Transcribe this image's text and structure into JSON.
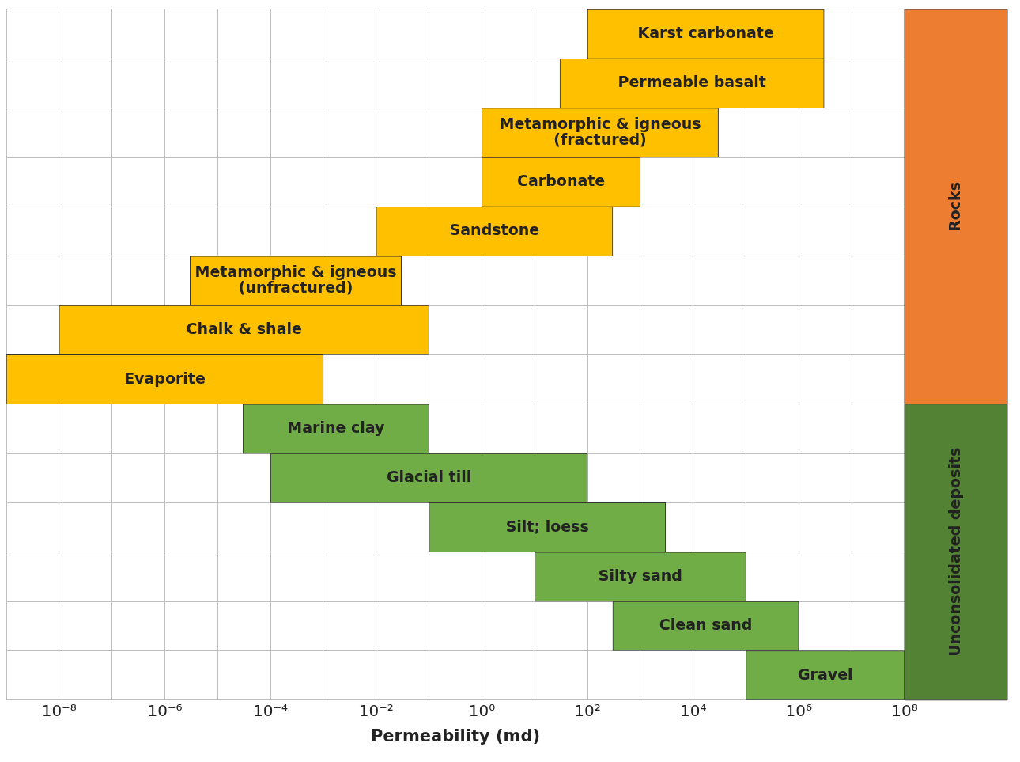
{
  "chart_data": {
    "type": "bar",
    "orientation": "horizontal",
    "xlabel": "Permeability (md)",
    "categories": [
      "Karst carbonate",
      "Permeable basalt",
      "Metamorphic & igneous (fractured)",
      "Carbonate",
      "Sandstone",
      "Metamorphic & igneous (unfractured)",
      "Chalk & shale",
      "Evaporite",
      "Marine clay",
      "Glacial till",
      "Silt; loess",
      "Silty sand",
      "Clean sand",
      "Gravel"
    ],
    "base": [
      100,
      30,
      1,
      1,
      0.01,
      3e-06,
      1e-08,
      1e-09,
      3e-05,
      0.0001,
      0.1,
      10,
      300,
      100000
    ],
    "values": [
      2999900,
      2999970,
      29999,
      999,
      299.99,
      0.029997,
      0.09999999,
      0.000999999,
      0.09997,
      99.9999,
      2999.9,
      99990,
      999700,
      99900000
    ],
    "colors": [
      "#ffc000",
      "#ffc000",
      "#ffc000",
      "#ffc000",
      "#ffc000",
      "#ffc000",
      "#ffc000",
      "#ffc000",
      "#70ad47",
      "#70ad47",
      "#70ad47",
      "#70ad47",
      "#70ad47",
      "#70ad47"
    ],
    "log": "x",
    "xlim": [
      1e-09,
      100000000
    ],
    "xticks": [
      {
        "value": 1e-08,
        "label": "10⁻⁸"
      },
      {
        "value": 1e-07,
        "label": null
      },
      {
        "value": 1e-06,
        "label": "10⁻⁶"
      },
      {
        "value": 1e-05,
        "label": null
      },
      {
        "value": 0.0001,
        "label": "10⁻⁴"
      },
      {
        "value": 0.001,
        "label": null
      },
      {
        "value": 0.01,
        "label": "10⁻²"
      },
      {
        "value": 0.1,
        "label": null
      },
      {
        "value": 1,
        "label": "10⁰"
      },
      {
        "value": 10,
        "label": null
      },
      {
        "value": 100,
        "label": "10²"
      },
      {
        "value": 1000,
        "label": null
      },
      {
        "value": 10000,
        "label": "10⁴"
      },
      {
        "value": 100000,
        "label": null
      },
      {
        "value": 1000000,
        "label": "10⁶"
      },
      {
        "value": 10000000,
        "label": null
      },
      {
        "value": 100000000,
        "label": "10⁸"
      }
    ],
    "grid": true,
    "legend": false,
    "tick_labels": "x",
    "annotations": [
      "Rocks",
      "Unconsolidated deposits"
    ]
  }
}
